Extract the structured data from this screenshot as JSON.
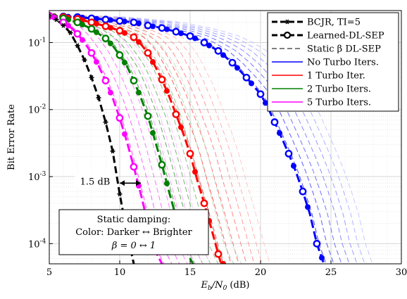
{
  "chart_data": {
    "type": "line",
    "xlabel": "E_b/N_0 (dB)",
    "ylabel": "Bit Error Rate",
    "xlim": [
      5,
      30
    ],
    "ylim": [
      5e-05,
      0.3
    ],
    "yscale": "log",
    "grid": true,
    "legend_position": "top-right",
    "x_ticks": [
      "5",
      "10",
      "15",
      "20",
      "25",
      "30"
    ],
    "y_ticks": [
      {
        "base": "10",
        "exp": "-1",
        "value": 0.1
      },
      {
        "base": "10",
        "exp": "-2",
        "value": 0.01
      },
      {
        "base": "10",
        "exp": "-3",
        "value": 0.001
      },
      {
        "base": "10",
        "exp": "-4",
        "value": 0.0001
      }
    ],
    "legend": [
      {
        "label": "BCJR, TI=5",
        "color": "#000000",
        "style": "bcjr"
      },
      {
        "label": "Learned-DL-SEP",
        "color": "#000000",
        "style": "learned"
      },
      {
        "label": "Static β DL-SEP",
        "color": "#000000",
        "style": "static"
      },
      {
        "label": "No Turbo Iters.",
        "color": "#0000ff",
        "style": "solid"
      },
      {
        "label": "1 Turbo Iter.",
        "color": "#ff0000",
        "style": "solid"
      },
      {
        "label": "2 Turbo Iters.",
        "color": "#008000",
        "style": "solid"
      },
      {
        "label": "5 Turbo Iters.",
        "color": "#ff00ff",
        "style": "solid"
      }
    ],
    "series": [
      {
        "name": "BCJR, TI=5",
        "color": "#000000",
        "x": [
          5,
          5.5,
          6,
          6.5,
          7,
          7.5,
          8,
          8.5,
          9,
          9.5,
          10,
          10.5,
          11
        ],
        "y": [
          0.25,
          0.22,
          0.18,
          0.14,
          0.09,
          0.055,
          0.03,
          0.015,
          0.0065,
          0.0024,
          0.00055,
          0.00015,
          5e-05
        ]
      },
      {
        "name": "No Turbo Iters.",
        "color": "#0000ff",
        "x": [
          5,
          6,
          7,
          8,
          9,
          10,
          11,
          12,
          13,
          14,
          15,
          16,
          17,
          18,
          19,
          20,
          20.5,
          21,
          21.5,
          22,
          22.5,
          23,
          23.5,
          24,
          24.5
        ],
        "y": [
          0.25,
          0.245,
          0.24,
          0.23,
          0.22,
          0.21,
          0.2,
          0.18,
          0.165,
          0.145,
          0.125,
          0.1,
          0.075,
          0.05,
          0.03,
          0.017,
          0.011,
          0.0065,
          0.0038,
          0.0022,
          0.0012,
          0.0006,
          0.00028,
          0.0001,
          5e-05
        ]
      },
      {
        "name": "1 Turbo Iter.",
        "color": "#ff0000",
        "x": [
          5,
          6,
          7,
          8,
          9,
          10,
          11,
          11.5,
          12,
          12.5,
          13,
          13.5,
          14,
          14.5,
          15,
          15.5,
          16,
          16.5,
          17,
          17.2
        ],
        "y": [
          0.25,
          0.24,
          0.225,
          0.2,
          0.175,
          0.15,
          0.12,
          0.095,
          0.07,
          0.045,
          0.028,
          0.016,
          0.0085,
          0.0045,
          0.0022,
          0.0009,
          0.0004,
          0.00017,
          7e-05,
          5e-05
        ]
      },
      {
        "name": "2 Turbo Iters.",
        "color": "#008000",
        "x": [
          5,
          6,
          7,
          8,
          9,
          9.5,
          10,
          10.5,
          11,
          11.5,
          12,
          12.5,
          13,
          13.5,
          14,
          14.5,
          15,
          15.2
        ],
        "y": [
          0.25,
          0.23,
          0.2,
          0.16,
          0.115,
          0.09,
          0.065,
          0.045,
          0.027,
          0.015,
          0.008,
          0.0035,
          0.0015,
          0.0006,
          0.00025,
          0.0001,
          6e-05,
          5e-05
        ]
      },
      {
        "name": "5 Turbo Iters.",
        "color": "#ff00ff",
        "x": [
          5,
          5.5,
          6,
          6.5,
          7,
          7.5,
          8,
          8.5,
          9,
          9.5,
          10,
          10.5,
          11,
          11.5,
          12,
          12.5,
          13
        ],
        "y": [
          0.25,
          0.23,
          0.2,
          0.17,
          0.135,
          0.1,
          0.07,
          0.045,
          0.027,
          0.015,
          0.0075,
          0.0034,
          0.0014,
          0.00055,
          0.0002,
          8e-05,
          5e-05
        ]
      }
    ],
    "learned_markers": [
      {
        "color": "#0000ff",
        "x": [
          5,
          6,
          7,
          8,
          9,
          10,
          11,
          12,
          13,
          14,
          15,
          16,
          17,
          18,
          19,
          20,
          21,
          22,
          23,
          24
        ]
      },
      {
        "color": "#ff0000",
        "x": [
          5,
          6,
          7,
          8,
          9,
          10,
          11,
          12,
          13,
          14,
          15,
          16,
          17
        ]
      },
      {
        "color": "#008000",
        "x": [
          5,
          6,
          7,
          8,
          9,
          10,
          11,
          12,
          13,
          14
        ]
      },
      {
        "color": "#ff00ff",
        "x": [
          5,
          6,
          7,
          8,
          9,
          10,
          11
        ]
      }
    ],
    "bcjr_markers_x": [
      5,
      5.5,
      6,
      6.5,
      7,
      7.5,
      8,
      8.5,
      9,
      9.5,
      10,
      10.5
    ],
    "annotations": {
      "gap_label": "1.5 dB",
      "gap_from_x": 10,
      "gap_to_x": 11.5,
      "gap_y": 0.0008,
      "static_box": {
        "line1": "Static damping:",
        "line2": "Color: Darker ↔ Brighter",
        "line3": "β = 0 ↔ 1"
      }
    }
  }
}
